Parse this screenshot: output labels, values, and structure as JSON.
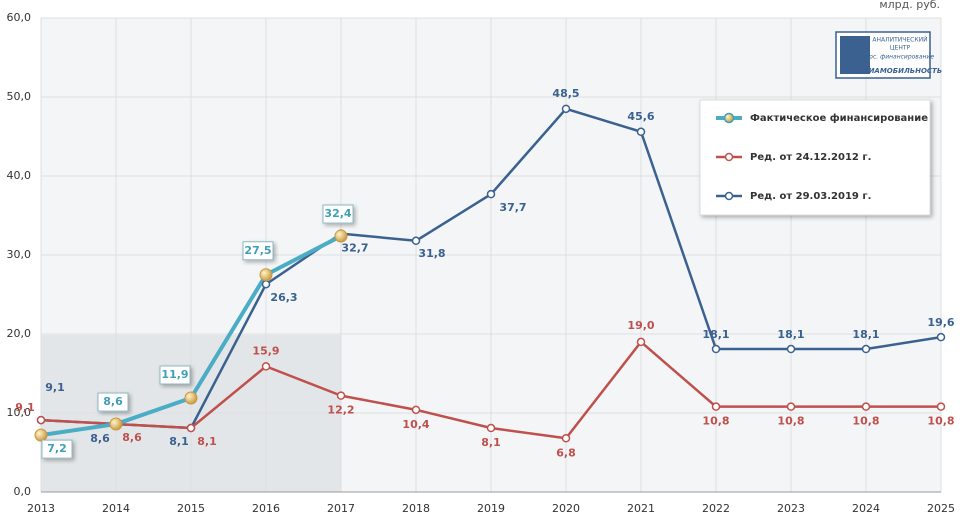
{
  "chart_data": {
    "type": "line",
    "y_unit": "млрд. руб.",
    "logo": [
      "АНАЛИТИЧЕСКИЙ",
      "ЦЕНТР",
      "Гос. финансирование",
      "АВИАМОБИЛЬНОСТЬ"
    ],
    "categories": [
      "2013",
      "2014",
      "2015",
      "2016",
      "2017",
      "2018",
      "2019",
      "2020",
      "2021",
      "2022",
      "2023",
      "2024",
      "2025"
    ],
    "series": [
      {
        "name": "Фактическое финансирование",
        "color": "#4bacc6",
        "values": [
          7.2,
          8.6,
          11.9,
          27.5,
          32.4,
          null,
          null,
          null,
          null,
          null,
          null,
          null,
          null
        ],
        "value_labels": [
          "7,2",
          "8,6",
          "11,9",
          "27,5",
          "32,4",
          null,
          null,
          null,
          null,
          null,
          null,
          null,
          null
        ]
      },
      {
        "name": "Ред. от 24.12.2012 г.",
        "color": "#c0504d",
        "values": [
          9.1,
          8.6,
          8.1,
          15.9,
          12.2,
          10.4,
          8.1,
          6.8,
          19.0,
          10.8,
          10.8,
          10.8,
          10.8
        ],
        "value_labels": [
          "9,1",
          "8,6",
          "8,1",
          "15,9",
          "12,2",
          "10,4",
          "8,1",
          "6,8",
          "19,0",
          "10,8",
          "10,8",
          "10,8",
          "10,8"
        ]
      },
      {
        "name": "Ред. от 29.03.2019 г.",
        "color": "#3a6190",
        "values": [
          9.1,
          8.6,
          8.1,
          26.3,
          32.7,
          31.8,
          37.7,
          48.5,
          45.6,
          18.1,
          18.1,
          18.1,
          19.6
        ],
        "value_labels": [
          "9,1",
          "8,6",
          "8,1",
          "26,3",
          "32,7",
          "31,8",
          "37,7",
          "48,5",
          "45,6",
          "18,1",
          "18,1",
          "18,1",
          "19,6"
        ]
      }
    ],
    "ylim": [
      0,
      60
    ],
    "yticks": [
      {
        "value": 0,
        "label": "0,0"
      },
      {
        "value": 10,
        "label": "10,0"
      },
      {
        "value": 20,
        "label": "20,0"
      },
      {
        "value": 30,
        "label": "30,0"
      },
      {
        "value": 40,
        "label": "40,0"
      },
      {
        "value": 50,
        "label": "50,0"
      },
      {
        "value": 60,
        "label": "60,0"
      }
    ],
    "grid": true
  }
}
